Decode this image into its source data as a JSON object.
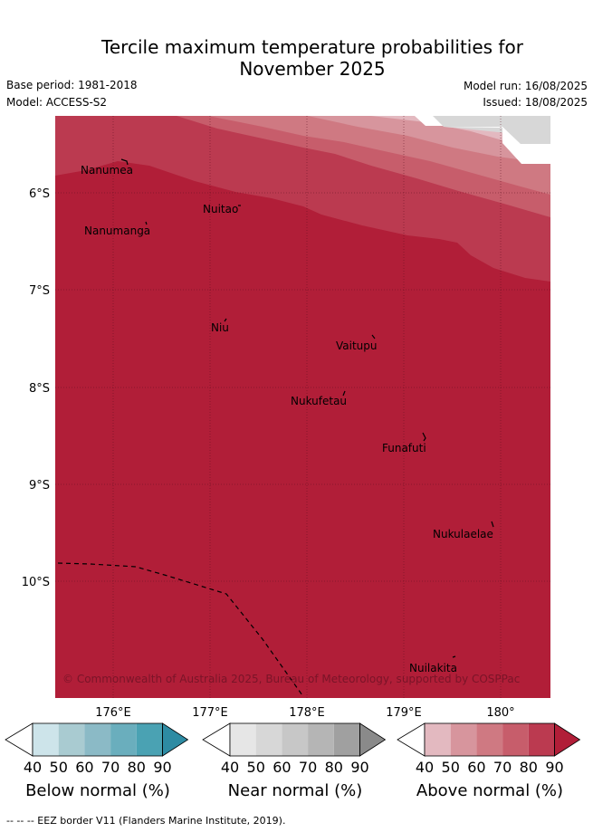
{
  "header": {
    "title_line1": "Tercile maximum temperature probabilities for",
    "title_line2": "November 2025",
    "base_period": "Base period: 1981-2018",
    "model": "Model: ACCESS-S2",
    "model_run": "Model run: 16/08/2025",
    "issued": "Issued: 18/08/2025"
  },
  "map": {
    "lon_ticks": [
      "176°E",
      "177°E",
      "178°E",
      "179°E",
      "180°"
    ],
    "lat_ticks": [
      "6°S",
      "7°S",
      "8°S",
      "9°S",
      "10°S"
    ],
    "places": [
      {
        "name": "Nanumea"
      },
      {
        "name": "Nuitao"
      },
      {
        "name": "Nanumanga"
      },
      {
        "name": "Niu"
      },
      {
        "name": "Vaitupu"
      },
      {
        "name": "Nukufetau"
      },
      {
        "name": "Funafuti"
      },
      {
        "name": "Nukulaelae"
      },
      {
        "name": "Nuilakita"
      }
    ],
    "copyright": "© Commonwealth of Australia 2025, Bureau of Meteorology, supported by COSPPac"
  },
  "colorbars": [
    {
      "label": "Below normal (%)",
      "ticks": [
        "40",
        "50",
        "60",
        "70",
        "80",
        "90"
      ],
      "colors": [
        "#cde4ea",
        "#a9cbd1",
        "#8bbac6",
        "#6aaebd",
        "#4aa2b3",
        "#2d8ba3"
      ]
    },
    {
      "label": "Near normal (%)",
      "ticks": [
        "40",
        "50",
        "60",
        "70",
        "80",
        "90"
      ],
      "colors": [
        "#e6e6e6",
        "#d7d7d7",
        "#c7c7c7",
        "#b5b5b5",
        "#a0a0a0",
        "#8a8a8a"
      ]
    },
    {
      "label": "Above normal (%)",
      "ticks": [
        "40",
        "50",
        "60",
        "70",
        "80",
        "90"
      ],
      "colors": [
        "#e3b9c0",
        "#d7959d",
        "#cf7982",
        "#c75d6b",
        "#bb3a50",
        "#b11e38"
      ]
    }
  ],
  "footer": "--  --  -- EEZ border V11 (Flanders Marine Institute, 2019)."
}
